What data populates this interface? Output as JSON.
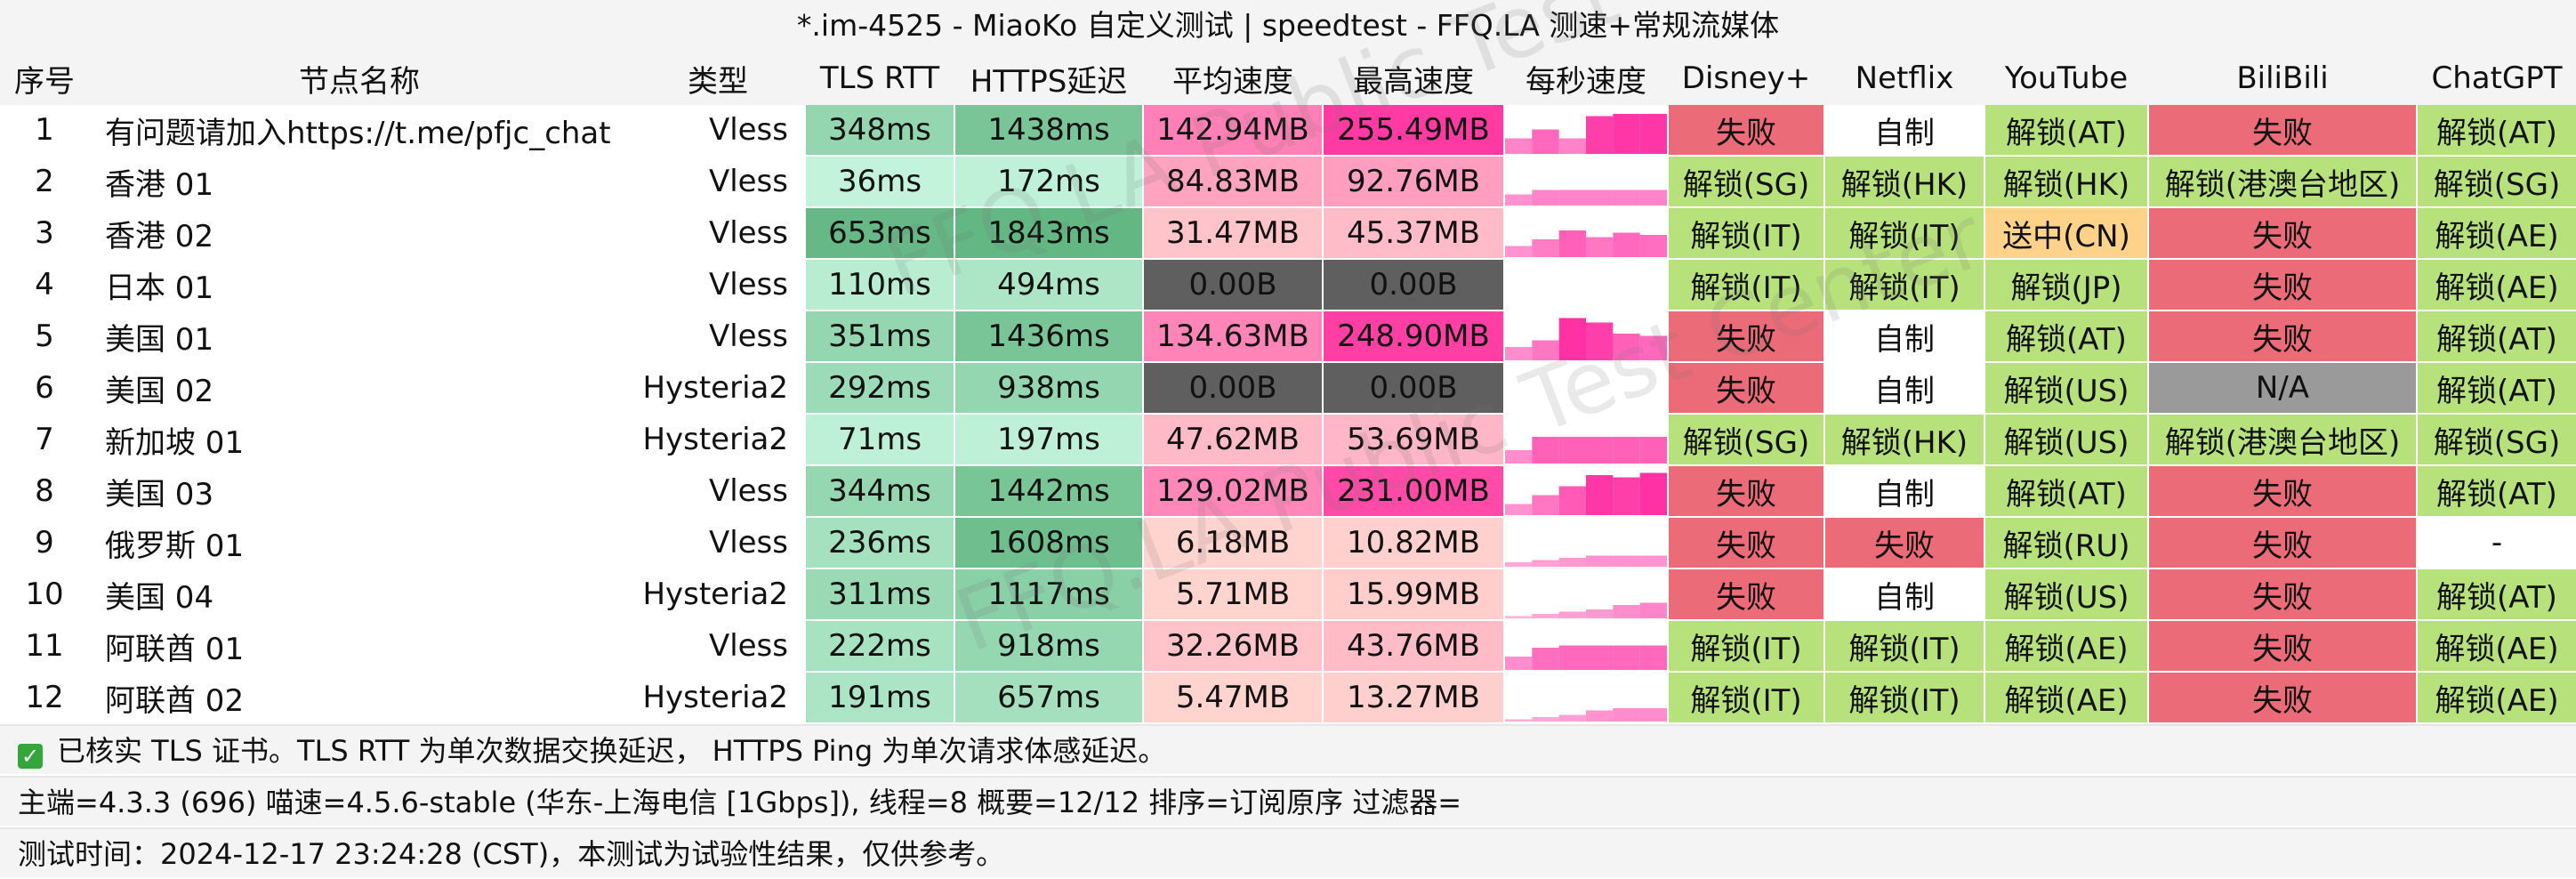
{
  "title": "*.im-4525 - MiaoKo 自定义测试 | speedtest - FFQ.LA 测速+常规流媒体",
  "headers": [
    "序号",
    "节点名称",
    "类型",
    "TLS RTT",
    "HTTPS延迟",
    "平均速度",
    "最高速度",
    "每秒速度",
    "Disney+",
    "Netflix",
    "YouTube",
    "BiliBili",
    "ChatGPT"
  ],
  "rows": [
    {
      "idx": "1",
      "name": "有问题请加入https://t.me/pfjc_chat",
      "type": "Vless",
      "tls": "348ms",
      "https": "1438ms",
      "avg": "142.94MB",
      "max": "255.49MB",
      "spark": [
        0.35,
        0.55,
        0.35,
        0.85,
        0.9,
        0.9
      ],
      "disney": "失败",
      "netflix": "自制",
      "youtube": "解锁(AT)",
      "bilibili": "失败",
      "chatgpt": "解锁(AT)"
    },
    {
      "idx": "2",
      "name": "香港 01",
      "type": "Vless",
      "tls": "36ms",
      "https": "172ms",
      "avg": "84.83MB",
      "max": "92.76MB",
      "spark": [
        0.25,
        0.35,
        0.35,
        0.35,
        0.35,
        0.35
      ],
      "disney": "解锁(SG)",
      "netflix": "解锁(HK)",
      "youtube": "解锁(HK)",
      "bilibili": "解锁(港澳台地区)",
      "chatgpt": "解锁(SG)"
    },
    {
      "idx": "3",
      "name": "香港 02",
      "type": "Vless",
      "tls": "653ms",
      "https": "1843ms",
      "avg": "31.47MB",
      "max": "45.37MB",
      "spark": [
        0.25,
        0.4,
        0.6,
        0.45,
        0.55,
        0.5
      ],
      "disney": "解锁(IT)",
      "netflix": "解锁(IT)",
      "youtube": "送中(CN)",
      "bilibili": "失败",
      "chatgpt": "解锁(AE)"
    },
    {
      "idx": "4",
      "name": "日本 01",
      "type": "Vless",
      "tls": "110ms",
      "https": "494ms",
      "avg": "0.00B",
      "max": "0.00B",
      "spark": [
        0,
        0,
        0,
        0,
        0,
        0
      ],
      "disney": "解锁(IT)",
      "netflix": "解锁(IT)",
      "youtube": "解锁(JP)",
      "bilibili": "失败",
      "chatgpt": "解锁(AE)"
    },
    {
      "idx": "5",
      "name": "美国 01",
      "type": "Vless",
      "tls": "351ms",
      "https": "1436ms",
      "avg": "134.63MB",
      "max": "248.90MB",
      "spark": [
        0.3,
        0.45,
        0.95,
        0.85,
        0.6,
        0.55
      ],
      "disney": "失败",
      "netflix": "自制",
      "youtube": "解锁(AT)",
      "bilibili": "失败",
      "chatgpt": "解锁(AT)"
    },
    {
      "idx": "6",
      "name": "美国 02",
      "type": "Hysteria2",
      "tls": "292ms",
      "https": "938ms",
      "avg": "0.00B",
      "max": "0.00B",
      "spark": [
        0,
        0,
        0,
        0,
        0,
        0
      ],
      "disney": "失败",
      "netflix": "自制",
      "youtube": "解锁(US)",
      "bilibili": "N/A",
      "chatgpt": "解锁(AT)"
    },
    {
      "idx": "7",
      "name": "新加坡 01",
      "type": "Hysteria2",
      "tls": "71ms",
      "https": "197ms",
      "avg": "47.62MB",
      "max": "53.69MB",
      "spark": [
        0.3,
        0.6,
        0.6,
        0.6,
        0.6,
        0.6
      ],
      "disney": "解锁(SG)",
      "netflix": "解锁(HK)",
      "youtube": "解锁(US)",
      "bilibili": "解锁(港澳台地区)",
      "chatgpt": "解锁(SG)"
    },
    {
      "idx": "8",
      "name": "美国 03",
      "type": "Vless",
      "tls": "344ms",
      "https": "1442ms",
      "avg": "129.02MB",
      "max": "231.00MB",
      "spark": [
        0.25,
        0.45,
        0.65,
        0.9,
        0.85,
        0.95
      ],
      "disney": "失败",
      "netflix": "自制",
      "youtube": "解锁(AT)",
      "bilibili": "失败",
      "chatgpt": "解锁(AT)"
    },
    {
      "idx": "9",
      "name": "俄罗斯 01",
      "type": "Vless",
      "tls": "236ms",
      "https": "1608ms",
      "avg": "6.18MB",
      "max": "10.82MB",
      "spark": [
        0.1,
        0.15,
        0.2,
        0.25,
        0.25,
        0.25
      ],
      "disney": "失败",
      "netflix": "失败",
      "youtube": "解锁(RU)",
      "bilibili": "失败",
      "chatgpt": "-"
    },
    {
      "idx": "10",
      "name": "美国 04",
      "type": "Hysteria2",
      "tls": "311ms",
      "https": "1117ms",
      "avg": "5.71MB",
      "max": "15.99MB",
      "spark": [
        0.05,
        0.1,
        0.15,
        0.2,
        0.3,
        0.35
      ],
      "disney": "失败",
      "netflix": "自制",
      "youtube": "解锁(US)",
      "bilibili": "失败",
      "chatgpt": "解锁(AT)"
    },
    {
      "idx": "11",
      "name": "阿联酋 01",
      "type": "Vless",
      "tls": "222ms",
      "https": "918ms",
      "avg": "32.26MB",
      "max": "43.76MB",
      "spark": [
        0.3,
        0.5,
        0.55,
        0.55,
        0.55,
        0.55
      ],
      "disney": "解锁(IT)",
      "netflix": "解锁(IT)",
      "youtube": "解锁(AE)",
      "bilibili": "失败",
      "chatgpt": "解锁(AE)"
    },
    {
      "idx": "12",
      "name": "阿联酋 02",
      "type": "Hysteria2",
      "tls": "191ms",
      "https": "657ms",
      "avg": "5.47MB",
      "max": "13.27MB",
      "spark": [
        0.05,
        0.1,
        0.15,
        0.25,
        0.3,
        0.3
      ],
      "disney": "解锁(IT)",
      "netflix": "解锁(IT)",
      "youtube": "解锁(AE)",
      "bilibili": "失败",
      "chatgpt": "解锁(AE)"
    }
  ],
  "footer": {
    "note": "已核实 TLS 证书。TLS RTT 为单次数据交换延迟， HTTPS Ping 为单次请求体感延迟。",
    "meta": "主端=4.3.3 (696) 喵速=4.5.6-stable (华东-上海电信 [1Gbps]), 线程=8 概要=12/12 排序=订阅原序 过滤器=",
    "time": "测试时间：2024-12-17 23:24:28 (CST)，本测试为试验性结果，仅供参考。"
  },
  "watermark": "FFQ.LA Public Test Center",
  "colors": {
    "unlock": "#b7e17a",
    "fail": "#ec6b78",
    "self": "#ffffff",
    "cn": "#ffd28a",
    "na": "#9a9a9a",
    "null_speed": "#5f5f5f",
    "spark": "#ff2aa0"
  }
}
